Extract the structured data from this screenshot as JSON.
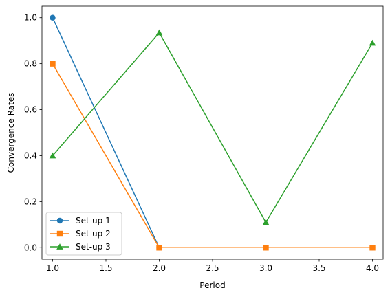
{
  "chart_data": {
    "type": "line",
    "title": "",
    "xlabel": "Period",
    "ylabel": "Convergence Rates",
    "x": [
      1.0,
      2.0,
      3.0,
      4.0
    ],
    "xlim": [
      0.9,
      4.1
    ],
    "ylim": [
      -0.05,
      1.05
    ],
    "xticks": [
      "1.0",
      "1.5",
      "2.0",
      "2.5",
      "3.0",
      "3.5",
      "4.0"
    ],
    "yticks": [
      "0.0",
      "0.2",
      "0.4",
      "0.6",
      "0.8",
      "1.0"
    ],
    "grid": false,
    "legend_position": "lower-left",
    "series": [
      {
        "name": "Set-up 1",
        "values": [
          1.0,
          0.0,
          0.0,
          0.0
        ],
        "color": "#1f77b4",
        "marker": "circle"
      },
      {
        "name": "Set-up 2",
        "values": [
          0.8,
          0.0,
          0.0,
          0.0
        ],
        "color": "#ff7f0e",
        "marker": "square"
      },
      {
        "name": "Set-up 3",
        "values": [
          0.4,
          0.935,
          0.11,
          0.89
        ],
        "color": "#2ca02c",
        "marker": "triangle"
      }
    ]
  }
}
